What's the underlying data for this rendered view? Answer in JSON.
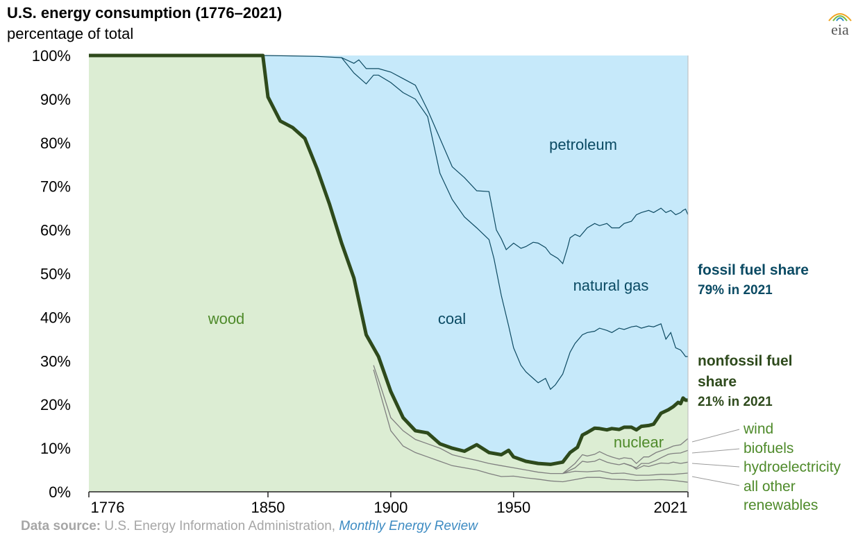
{
  "header": {
    "title": "U.S. energy consumption (1776–2021)",
    "subtitle": "percentage of total"
  },
  "logo": {
    "text": "eia"
  },
  "source": {
    "label": "Data source:",
    "text": "U.S. Energy Information Administration,",
    "publication": "Monthly Energy Review"
  },
  "colors": {
    "fossil_fill": "#c6e9fa",
    "nonfossil_fill": "#dcedd3",
    "fossil_text": "#0a4a63",
    "nonfossil_text": "#4e8a2a",
    "nonfossil_dark": "#2e4a1c",
    "fossil_line": "#0d4a62",
    "renew_line": "#7f7f7f",
    "axis": "#222222"
  },
  "chart_data": {
    "type": "area",
    "title": "U.S. energy consumption (1776–2021)",
    "ylabel": "percentage of total",
    "ylim": [
      0,
      100
    ],
    "yticks": [
      0,
      10,
      20,
      30,
      40,
      50,
      60,
      70,
      80,
      90,
      100
    ],
    "ytick_labels": [
      "0%",
      "10%",
      "20%",
      "30%",
      "40%",
      "50%",
      "60%",
      "70%",
      "80%",
      "90%",
      "100%"
    ],
    "xticks": [
      1776,
      1850,
      1900,
      1950,
      2021
    ],
    "xtick_labels": [
      "1776",
      "1850",
      "1900",
      "1950",
      "2021"
    ],
    "xlim": [
      1776,
      2021
    ],
    "x_break": {
      "below": 1850,
      "real_start": 1776,
      "drawn_start": 1815
    },
    "boundaries": {
      "nonfossil_top": [
        [
          1815,
          100
        ],
        [
          1849,
          100
        ],
        [
          1850,
          90.5
        ],
        [
          1855,
          85
        ],
        [
          1860,
          83.5
        ],
        [
          1865,
          81
        ],
        [
          1870,
          74
        ],
        [
          1875,
          66
        ],
        [
          1880,
          57
        ],
        [
          1885,
          49
        ],
        [
          1890,
          36
        ],
        [
          1895,
          31
        ],
        [
          1900,
          23
        ],
        [
          1905,
          17
        ],
        [
          1910,
          14
        ],
        [
          1915,
          13.5
        ],
        [
          1920,
          11
        ],
        [
          1925,
          10
        ],
        [
          1930,
          9.3
        ],
        [
          1935,
          10.8
        ],
        [
          1940,
          9
        ],
        [
          1945,
          8.5
        ],
        [
          1948,
          9.5
        ],
        [
          1950,
          8
        ],
        [
          1955,
          7
        ],
        [
          1960,
          6.5
        ],
        [
          1965,
          6.3
        ],
        [
          1970,
          6.8
        ],
        [
          1973,
          9
        ],
        [
          1976,
          10.2
        ],
        [
          1978,
          13
        ],
        [
          1980,
          13.6
        ],
        [
          1983,
          14.6
        ],
        [
          1985,
          14.5
        ],
        [
          1988,
          14.2
        ],
        [
          1990,
          14.5
        ],
        [
          1993,
          14.3
        ],
        [
          1995,
          14.8
        ],
        [
          1998,
          14.8
        ],
        [
          2000,
          14.2
        ],
        [
          2002,
          15
        ],
        [
          2005,
          15.2
        ],
        [
          2007,
          15.5
        ],
        [
          2010,
          18
        ],
        [
          2013,
          18.8
        ],
        [
          2015,
          19.5
        ],
        [
          2017,
          20.5
        ],
        [
          2018,
          20.2
        ],
        [
          2019,
          21.5
        ],
        [
          2020,
          21
        ],
        [
          2021,
          21
        ]
      ],
      "coal_top": [
        [
          1849,
          100
        ],
        [
          1860,
          99.9
        ],
        [
          1870,
          99.8
        ],
        [
          1880,
          99.5
        ],
        [
          1885,
          98.2
        ],
        [
          1887,
          99
        ],
        [
          1890,
          97
        ],
        [
          1895,
          97
        ],
        [
          1900,
          96.2
        ],
        [
          1905,
          94.7
        ],
        [
          1910,
          93.2
        ],
        [
          1915,
          87.5
        ],
        [
          1920,
          81
        ],
        [
          1925,
          74.5
        ],
        [
          1930,
          72
        ],
        [
          1935,
          69
        ],
        [
          1940,
          68.8
        ],
        [
          1943,
          60
        ],
        [
          1945,
          58
        ],
        [
          1947,
          55.5
        ],
        [
          1950,
          57
        ],
        [
          1953,
          55.8
        ],
        [
          1955,
          56.2
        ],
        [
          1958,
          57.2
        ],
        [
          1960,
          57
        ],
        [
          1963,
          56
        ],
        [
          1965,
          54.5
        ],
        [
          1968,
          53.5
        ],
        [
          1970,
          52.3
        ],
        [
          1972,
          56
        ],
        [
          1973,
          58.2
        ],
        [
          1975,
          59
        ],
        [
          1977,
          58.5
        ],
        [
          1980,
          60.5
        ],
        [
          1983,
          61.5
        ],
        [
          1985,
          61
        ],
        [
          1988,
          61.5
        ],
        [
          1990,
          60.5
        ],
        [
          1993,
          60.5
        ],
        [
          1995,
          61.5
        ],
        [
          1998,
          62
        ],
        [
          2000,
          63.5
        ],
        [
          2002,
          64
        ],
        [
          2005,
          64.5
        ],
        [
          2007,
          64
        ],
        [
          2010,
          65
        ],
        [
          2012,
          64
        ],
        [
          2014,
          64.5
        ],
        [
          2016,
          63.5
        ],
        [
          2018,
          64
        ],
        [
          2019,
          64.5
        ],
        [
          2020,
          64.8
        ],
        [
          2021,
          63.5
        ]
      ],
      "petroleum_gas_divide": [
        [
          1880,
          99.5
        ],
        [
          1885,
          96
        ],
        [
          1890,
          93.5
        ],
        [
          1893,
          95.5
        ],
        [
          1895,
          95.5
        ],
        [
          1900,
          93.8
        ],
        [
          1905,
          91.5
        ],
        [
          1910,
          90
        ],
        [
          1915,
          86
        ],
        [
          1920,
          73
        ],
        [
          1925,
          67
        ],
        [
          1930,
          63
        ],
        [
          1935,
          60.5
        ],
        [
          1940,
          57.8
        ],
        [
          1942,
          53.5
        ],
        [
          1945,
          45
        ],
        [
          1948,
          38
        ],
        [
          1950,
          33
        ],
        [
          1953,
          29
        ],
        [
          1955,
          27.5
        ],
        [
          1958,
          26
        ],
        [
          1960,
          25
        ],
        [
          1963,
          26
        ],
        [
          1965,
          23.5
        ],
        [
          1967,
          24.5
        ],
        [
          1970,
          27
        ],
        [
          1973,
          32
        ],
        [
          1975,
          34
        ],
        [
          1978,
          36
        ],
        [
          1980,
          36.5
        ],
        [
          1983,
          36.8
        ],
        [
          1985,
          37.5
        ],
        [
          1988,
          37
        ],
        [
          1990,
          36.5
        ],
        [
          1993,
          37.5
        ],
        [
          1995,
          37.2
        ],
        [
          1998,
          37.8
        ],
        [
          2000,
          38
        ],
        [
          2002,
          37.5
        ],
        [
          2005,
          38
        ],
        [
          2007,
          37.8
        ],
        [
          2010,
          38.5
        ],
        [
          2012,
          35
        ],
        [
          2014,
          36.5
        ],
        [
          2016,
          33
        ],
        [
          2018,
          32.5
        ],
        [
          2019,
          31.8
        ],
        [
          2020,
          31
        ],
        [
          2021,
          31
        ]
      ],
      "all_other_renewables": [
        [
          1893,
          28
        ],
        [
          1896,
          22
        ],
        [
          1900,
          14
        ],
        [
          1905,
          10.5
        ],
        [
          1910,
          9
        ],
        [
          1915,
          8
        ],
        [
          1920,
          7
        ],
        [
          1925,
          6
        ],
        [
          1930,
          5.5
        ],
        [
          1935,
          5
        ],
        [
          1940,
          4.2
        ],
        [
          1945,
          3.5
        ],
        [
          1950,
          3.6
        ],
        [
          1955,
          3.2
        ],
        [
          1960,
          2.9
        ],
        [
          1965,
          2.5
        ],
        [
          1970,
          2.3
        ],
        [
          1975,
          2.8
        ],
        [
          1980,
          3.3
        ],
        [
          1985,
          3.3
        ],
        [
          1990,
          2.9
        ],
        [
          1995,
          2.8
        ],
        [
          2000,
          2.6
        ],
        [
          2005,
          2.7
        ],
        [
          2010,
          2.8
        ],
        [
          2015,
          2.6
        ],
        [
          2021,
          2.2
        ]
      ],
      "hydroelectricity": [
        [
          1893,
          29
        ],
        [
          1896,
          24
        ],
        [
          1900,
          17
        ],
        [
          1905,
          14
        ],
        [
          1910,
          12
        ],
        [
          1915,
          11
        ],
        [
          1920,
          10
        ],
        [
          1925,
          8.5
        ],
        [
          1930,
          7.8
        ],
        [
          1935,
          7.2
        ],
        [
          1940,
          6.5
        ],
        [
          1945,
          6
        ],
        [
          1950,
          5.5
        ],
        [
          1955,
          5
        ],
        [
          1960,
          4.5
        ],
        [
          1965,
          4.2
        ],
        [
          1970,
          4.2
        ],
        [
          1975,
          4.7
        ],
        [
          1980,
          4.6
        ],
        [
          1985,
          4.8
        ],
        [
          1990,
          4.2
        ],
        [
          1995,
          4.3
        ],
        [
          2000,
          3.8
        ],
        [
          2005,
          3.8
        ],
        [
          2010,
          4
        ],
        [
          2015,
          4
        ],
        [
          2021,
          4.3
        ]
      ],
      "biofuels": [
        [
          1970,
          4.2
        ],
        [
          1975,
          5.5
        ],
        [
          1978,
          7
        ],
        [
          1980,
          6.8
        ],
        [
          1983,
          7
        ],
        [
          1985,
          7.5
        ],
        [
          1988,
          6.8
        ],
        [
          1990,
          6.5
        ],
        [
          1993,
          6.2
        ],
        [
          1995,
          6.5
        ],
        [
          1998,
          6
        ],
        [
          2000,
          5.2
        ],
        [
          2003,
          6
        ],
        [
          2005,
          5.8
        ],
        [
          2008,
          6.3
        ],
        [
          2010,
          6.6
        ],
        [
          2013,
          6.5
        ],
        [
          2015,
          6.8
        ],
        [
          2018,
          6.5
        ],
        [
          2021,
          6.8
        ]
      ],
      "wind": [
        [
          1995,
          6.5
        ],
        [
          2000,
          5.5
        ],
        [
          2002,
          6.5
        ],
        [
          2005,
          6.5
        ],
        [
          2008,
          7.2
        ],
        [
          2010,
          7.8
        ],
        [
          2013,
          8.6
        ],
        [
          2015,
          8.8
        ],
        [
          2018,
          8.9
        ],
        [
          2021,
          9.5
        ]
      ],
      "nuclear_top": [
        [
          1970,
          4.2
        ],
        [
          1975,
          6.5
        ],
        [
          1978,
          8.5
        ],
        [
          1980,
          8.2
        ],
        [
          1983,
          8.6
        ],
        [
          1985,
          9.2
        ],
        [
          1988,
          8.4
        ],
        [
          1990,
          8
        ],
        [
          1993,
          7.5
        ],
        [
          1995,
          7.8
        ],
        [
          1998,
          7.6
        ],
        [
          2000,
          6.5
        ],
        [
          2003,
          8
        ],
        [
          2005,
          8
        ],
        [
          2008,
          9
        ],
        [
          2010,
          9.4
        ],
        [
          2013,
          10
        ],
        [
          2015,
          10.5
        ],
        [
          2018,
          10.8
        ],
        [
          2021,
          12.2
        ]
      ]
    },
    "area_labels": [
      "petroleum",
      "natural gas",
      "coal",
      "wood",
      "nuclear"
    ],
    "callouts": {
      "fossil_title": "fossil fuel share",
      "fossil_value": "79% in 2021",
      "nonfossil_title_1": "nonfossil fuel",
      "nonfossil_title_2": "share",
      "nonfossil_value": "21% in 2021"
    },
    "renewable_labels": [
      "wind",
      "biofuels",
      "hydroelectricity",
      "all other",
      "renewables"
    ]
  }
}
